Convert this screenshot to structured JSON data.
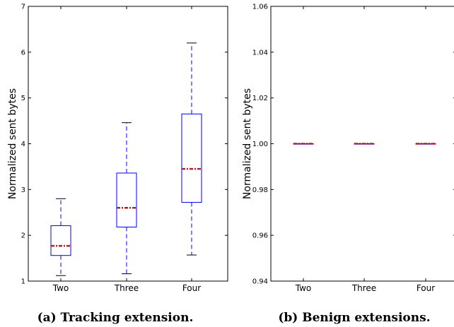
{
  "chart_data": [
    {
      "type": "box",
      "caption": "(a) Tracking extension.",
      "ylabel": "Normalized sent bytes",
      "xlabel": "",
      "categories": [
        "Two",
        "Three",
        "Four"
      ],
      "ylim": [
        1,
        7
      ],
      "yticks": [
        "1",
        "2",
        "3",
        "4",
        "5",
        "6",
        "7"
      ],
      "grid": false,
      "boxes": [
        {
          "category": "Two",
          "whisker_low": 1.12,
          "q1": 1.56,
          "median": 1.77,
          "q3": 2.21,
          "whisker_high": 2.8
        },
        {
          "category": "Three",
          "whisker_low": 1.16,
          "q1": 2.18,
          "median": 2.6,
          "q3": 3.36,
          "whisker_high": 4.46
        },
        {
          "category": "Four",
          "whisker_low": 1.57,
          "q1": 2.72,
          "median": 3.45,
          "q3": 4.65,
          "whisker_high": 6.2
        }
      ]
    },
    {
      "type": "box",
      "caption": "(b) Benign extensions.",
      "ylabel": "Normalized sent bytes",
      "xlabel": "",
      "categories": [
        "Two",
        "Three",
        "Four"
      ],
      "ylim": [
        0.94,
        1.06
      ],
      "yticks": [
        "0.94",
        "0.96",
        "0.98",
        "1.00",
        "1.02",
        "1.04",
        "1.06"
      ],
      "grid": false,
      "boxes": [
        {
          "category": "Two",
          "whisker_low": 1.0,
          "q1": 1.0,
          "median": 1.0,
          "q3": 1.0,
          "whisker_high": 1.0
        },
        {
          "category": "Three",
          "whisker_low": 1.0,
          "q1": 1.0,
          "median": 1.0,
          "q3": 1.0,
          "whisker_high": 1.0
        },
        {
          "category": "Four",
          "whisker_low": 1.0,
          "q1": 1.0,
          "median": 1.0,
          "q3": 1.0,
          "whisker_high": 1.0
        }
      ]
    }
  ],
  "colors": {
    "box": "#0000ff",
    "whisker": "#0000ff",
    "median": "#b22222",
    "cap": "#000000",
    "axis": "#000000"
  }
}
